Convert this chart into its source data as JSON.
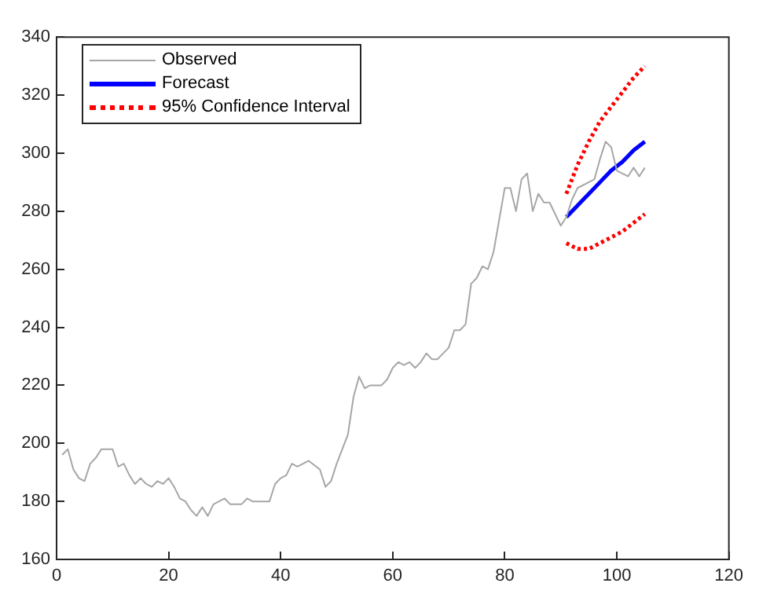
{
  "chart_data": {
    "type": "line",
    "xlim": [
      0,
      120
    ],
    "xticks": [
      0,
      20,
      40,
      60,
      80,
      100,
      120
    ],
    "ylim": [
      160,
      340
    ],
    "yticks": [
      160,
      180,
      200,
      220,
      240,
      260,
      280,
      300,
      320,
      340
    ],
    "grid": false,
    "legend": "top left",
    "marker": "none",
    "series": [
      {
        "name": "Observed",
        "color": "#a6a6a6",
        "line_style": "solid",
        "x": [
          1,
          2,
          3,
          4,
          5,
          6,
          7,
          8,
          10,
          11,
          12,
          13,
          14,
          15,
          16,
          17,
          18,
          19,
          20,
          21,
          22,
          23,
          24,
          25,
          26,
          27,
          28,
          29,
          30,
          31,
          33,
          34,
          35,
          36,
          38,
          39,
          40,
          41,
          42,
          43,
          45,
          47,
          48,
          49,
          50,
          52,
          53,
          54,
          55,
          56,
          58,
          59,
          60,
          61,
          62,
          63,
          64,
          65,
          66,
          67,
          68,
          70,
          71,
          72,
          73,
          74,
          75,
          76,
          77,
          78,
          80,
          81,
          82,
          83,
          84,
          85,
          86,
          87,
          88,
          89,
          90,
          91,
          92,
          93,
          95,
          96,
          97,
          98,
          99,
          100,
          101,
          102,
          103,
          104,
          105
        ],
        "values": [
          196,
          198,
          191,
          188,
          187,
          193,
          195,
          198,
          198,
          192,
          193,
          189,
          186,
          188,
          186,
          185,
          187,
          186,
          188,
          185,
          181,
          180,
          177,
          175,
          178,
          175,
          179,
          180,
          181,
          179,
          179,
          181,
          180,
          180,
          180,
          186,
          188,
          189,
          193,
          192,
          194,
          191,
          185,
          187,
          193,
          203,
          216,
          223,
          219,
          220,
          220,
          222,
          226,
          228,
          227,
          228,
          226,
          228,
          231,
          229,
          229,
          233,
          239,
          239,
          241,
          255,
          257,
          261,
          260,
          266,
          288,
          288,
          280,
          291,
          293,
          280,
          286,
          283,
          283,
          279,
          275,
          278,
          284,
          288,
          290,
          291,
          298,
          304,
          302,
          294,
          293,
          292,
          295,
          292,
          295
        ]
      },
      {
        "name": "Forecast",
        "color": "#0000ff",
        "line_style": "solid",
        "x": [
          91,
          93,
          95,
          97,
          99,
          101,
          103,
          105
        ],
        "values": [
          278,
          282,
          286,
          290,
          294,
          297,
          301,
          304
        ]
      },
      {
        "name": "95% Confidence Interval",
        "color": "#ff0000",
        "line_style": "dotted",
        "x": [
          91,
          93,
          95,
          97,
          99,
          101,
          103,
          105
        ],
        "values": [
          286,
          296,
          304,
          311,
          316,
          321,
          326,
          330
        ]
      },
      {
        "color": "#ff0000",
        "line_style": "dotted",
        "x": [
          91,
          93,
          95,
          97,
          99,
          101,
          103,
          105
        ],
        "values": [
          269,
          267,
          267,
          269,
          271,
          273,
          276,
          279
        ]
      }
    ]
  }
}
